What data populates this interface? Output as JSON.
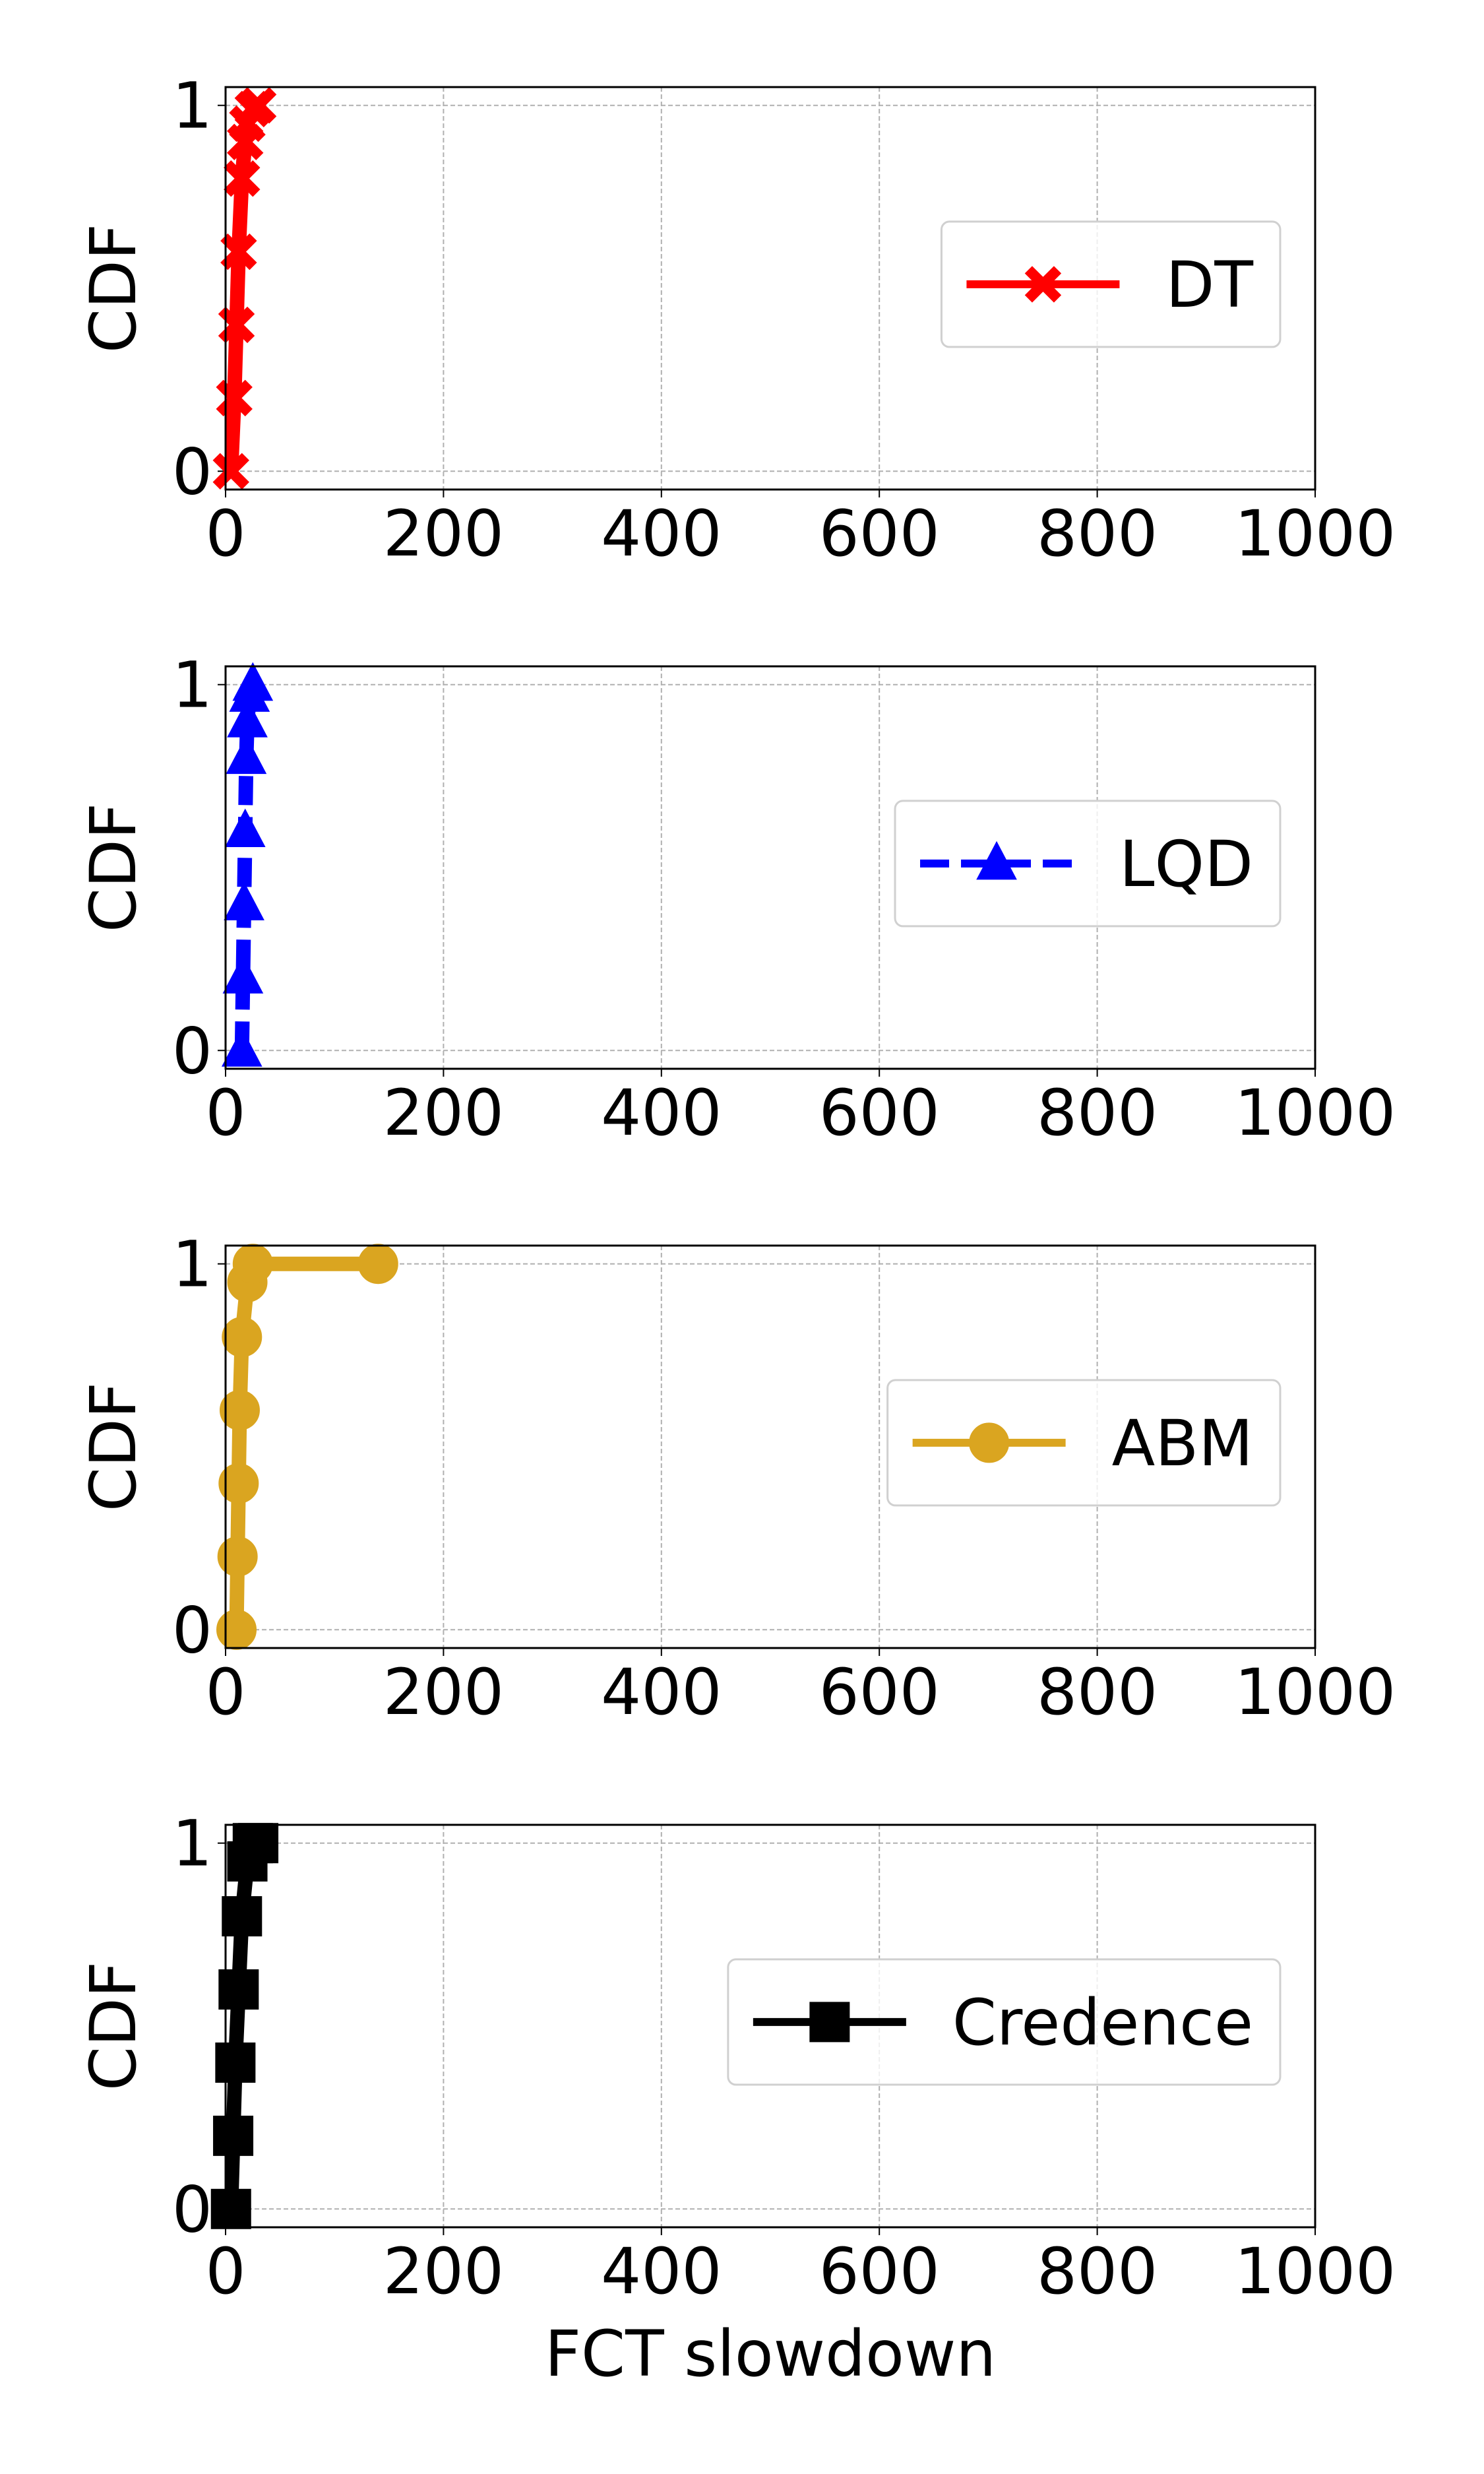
{
  "chart_data": [
    {
      "type": "line",
      "ylabel": "CDF",
      "xlim": [
        0,
        1000
      ],
      "xticks": [
        0,
        200,
        400,
        600,
        800,
        1000
      ],
      "ylim": [
        -0.05,
        1.05
      ],
      "yticks": [
        0,
        1
      ],
      "grid": true,
      "legend": "center right",
      "x": [
        5,
        8,
        10,
        12,
        15,
        18,
        20,
        25,
        30
      ],
      "series": [
        {
          "name": "DT",
          "color": "#ff0000",
          "marker": "x",
          "linestyle": "solid",
          "values": [
            0,
            0.2,
            0.4,
            0.6,
            0.8,
            0.9,
            0.95,
            0.99,
            1
          ]
        }
      ]
    },
    {
      "type": "line",
      "ylabel": "CDF",
      "xlim": [
        0,
        1000
      ],
      "xticks": [
        0,
        200,
        400,
        600,
        800,
        1000
      ],
      "ylim": [
        -0.05,
        1.05
      ],
      "yticks": [
        0,
        1
      ],
      "grid": true,
      "legend": "center right",
      "x": [
        15,
        16,
        17,
        18,
        19,
        20,
        22,
        25
      ],
      "series": [
        {
          "name": "LQD",
          "color": "#0000ff",
          "marker": "triangle",
          "linestyle": "dashed",
          "values": [
            0,
            0.2,
            0.4,
            0.6,
            0.8,
            0.9,
            0.97,
            1
          ]
        }
      ]
    },
    {
      "type": "line",
      "ylabel": "CDF",
      "xlim": [
        0,
        1000
      ],
      "xticks": [
        0,
        200,
        400,
        600,
        800,
        1000
      ],
      "ylim": [
        -0.05,
        1.05
      ],
      "yticks": [
        0,
        1
      ],
      "grid": true,
      "legend": "center right",
      "x": [
        10,
        11,
        12,
        13,
        15,
        20,
        25,
        140
      ],
      "series": [
        {
          "name": "ABM",
          "color": "#daa520",
          "marker": "circle",
          "linestyle": "solid",
          "values": [
            0,
            0.2,
            0.4,
            0.6,
            0.8,
            0.95,
            1,
            1
          ]
        }
      ]
    },
    {
      "type": "line",
      "ylabel": "CDF",
      "xlabel": "FCT slowdown",
      "xlim": [
        0,
        1000
      ],
      "xticks": [
        0,
        200,
        400,
        600,
        800,
        1000
      ],
      "ylim": [
        -0.05,
        1.05
      ],
      "yticks": [
        0,
        1
      ],
      "grid": true,
      "legend": "center right",
      "x": [
        5,
        7,
        9,
        12,
        15,
        20,
        25,
        30
      ],
      "series": [
        {
          "name": "Credence",
          "color": "#000000",
          "marker": "square",
          "linestyle": "solid",
          "values": [
            0,
            0.2,
            0.4,
            0.6,
            0.8,
            0.95,
            1,
            1
          ]
        }
      ]
    }
  ]
}
